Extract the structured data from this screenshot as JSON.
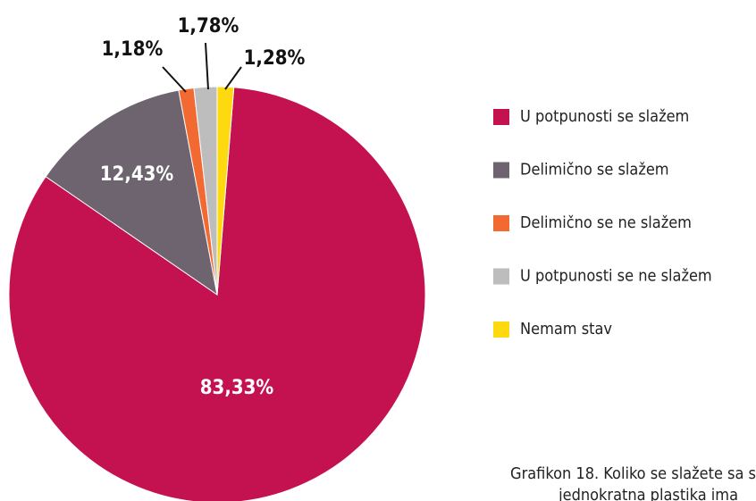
{
  "chart_data": {
    "type": "pie",
    "categories": [
      "U potpunosti se slažem",
      "Delimično se slažem",
      "Delimično se ne slažem",
      "U potpunosti se ne slažem",
      "Nemam stav"
    ],
    "values": [
      83.33,
      12.43,
      1.18,
      1.78,
      1.28
    ],
    "value_labels": [
      "83,33%",
      "12,43%",
      "1,18%",
      "1,78%",
      "1,28%"
    ],
    "colors": [
      "#c4114f",
      "#6e6470",
      "#f26a32",
      "#bdbdbd",
      "#ffd90f"
    ],
    "caption": [
      "Grafikon 18. Koliko se slažete sa s",
      "jednokratna plastika ima"
    ]
  }
}
